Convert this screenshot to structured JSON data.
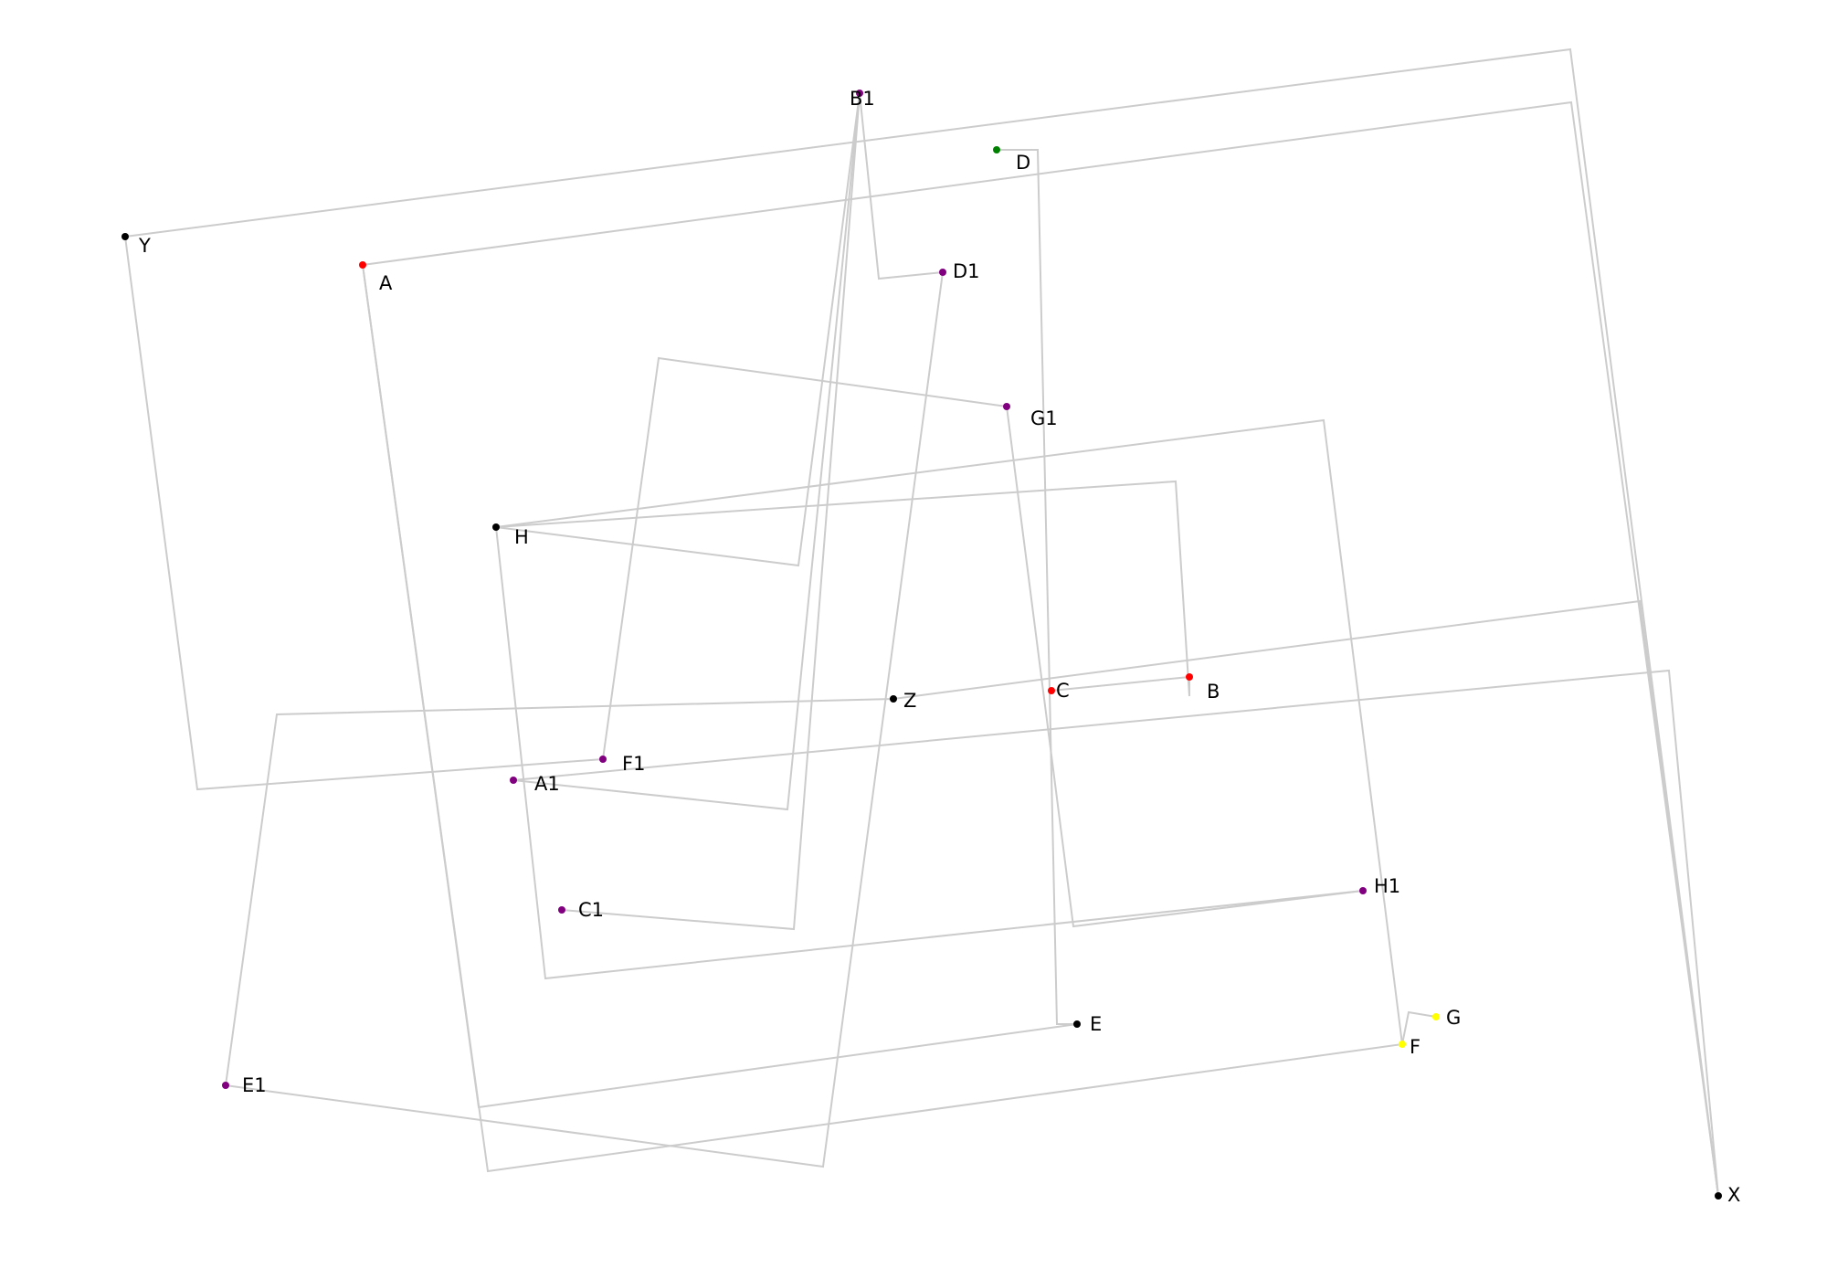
{
  "diagram": {
    "edge_color": "#cccccc",
    "nodes": [
      {
        "id": "B1",
        "label": "B1",
        "color": "#800080"
      },
      {
        "id": "D",
        "label": "D",
        "color": "#008000"
      },
      {
        "id": "D1",
        "label": "D1",
        "color": "#800080"
      },
      {
        "id": "Y",
        "label": "Y",
        "color": "#000000"
      },
      {
        "id": "A",
        "label": "A",
        "color": "#ff0000"
      },
      {
        "id": "G1",
        "label": "G1",
        "color": "#800080"
      },
      {
        "id": "H",
        "label": "H",
        "color": "#000000"
      },
      {
        "id": "Z",
        "label": "Z",
        "color": "#000000"
      },
      {
        "id": "C",
        "label": "C",
        "color": "#ff0000"
      },
      {
        "id": "B",
        "label": "B",
        "color": "#ff0000"
      },
      {
        "id": "F1",
        "label": "F1",
        "color": "#800080"
      },
      {
        "id": "A1",
        "label": "A1",
        "color": "#800080"
      },
      {
        "id": "H1",
        "label": "H1",
        "color": "#800080"
      },
      {
        "id": "C1",
        "label": "C1",
        "color": "#800080"
      },
      {
        "id": "E",
        "label": "E",
        "color": "#000000"
      },
      {
        "id": "G",
        "label": "G",
        "color": "#ffff00"
      },
      {
        "id": "F",
        "label": "F",
        "color": "#ffff00"
      },
      {
        "id": "E1",
        "label": "E1",
        "color": "#800080"
      },
      {
        "id": "X",
        "label": "X",
        "color": "#000000"
      }
    ],
    "edges": [
      {
        "from": "Y",
        "to": "X"
      },
      {
        "from": "A",
        "to": "X"
      },
      {
        "from": "Y",
        "to": "F1"
      },
      {
        "from": "A",
        "to": "E"
      },
      {
        "from": "A",
        "to": "F"
      },
      {
        "from": "B1",
        "to": "D1"
      },
      {
        "from": "B1",
        "to": "H"
      },
      {
        "from": "B1",
        "to": "A1"
      },
      {
        "from": "B1",
        "to": "C1"
      },
      {
        "from": "D",
        "to": "E"
      },
      {
        "from": "D1",
        "to": "E1"
      },
      {
        "from": "G1",
        "to": "F1"
      },
      {
        "from": "G1",
        "to": "H1"
      },
      {
        "from": "H",
        "to": "H1"
      },
      {
        "from": "H",
        "to": "B"
      },
      {
        "from": "H",
        "to": "F"
      },
      {
        "from": "C",
        "to": "B"
      },
      {
        "from": "Z",
        "to": "E1"
      },
      {
        "from": "Z",
        "to": "X"
      },
      {
        "from": "A1",
        "to": "X"
      },
      {
        "from": "F",
        "to": "G"
      }
    ]
  }
}
